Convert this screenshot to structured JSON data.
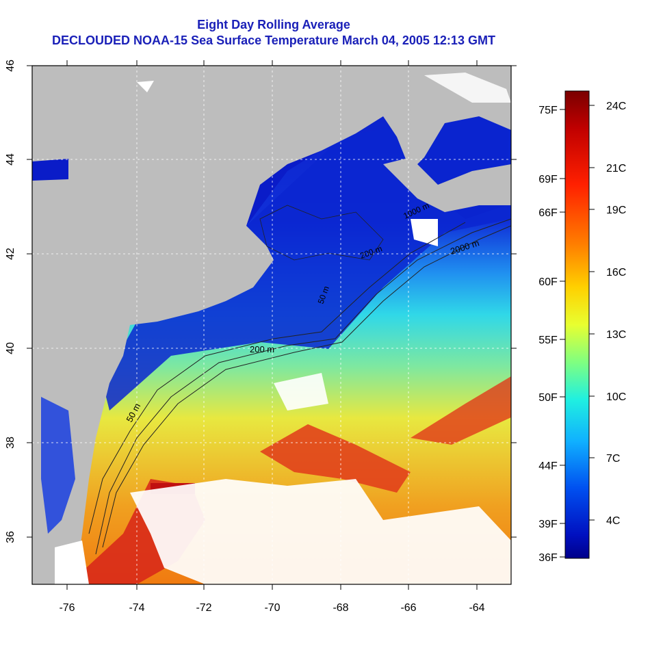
{
  "title": {
    "line1": "Eight Day Rolling Average",
    "line2": "DECLOUDED NOAA-15 Sea Surface Temperature March 04, 2005 12:13 GMT"
  },
  "map": {
    "lon_ticks": [
      "-76",
      "-74",
      "-72",
      "-70",
      "-68",
      "-66",
      "-64"
    ],
    "lat_ticks": [
      "36",
      "38",
      "40",
      "42",
      "44",
      "46"
    ],
    "contour_labels": [
      "50 m",
      "200 m",
      "2000 m",
      "50 m",
      "200 m",
      "1000 m"
    ],
    "colors": {
      "land": "#bdbdbd",
      "cloud": "#ffffff",
      "cold": "#0a1cc8",
      "warm": "#e8261a"
    }
  },
  "legend": {
    "fahrenheit": [
      "75F",
      "69F",
      "66F",
      "60F",
      "55F",
      "50F",
      "44F",
      "39F",
      "36F"
    ],
    "celsius": [
      "24C",
      "21C",
      "19C",
      "16C",
      "13C",
      "10C",
      "7C",
      "4C"
    ]
  }
}
